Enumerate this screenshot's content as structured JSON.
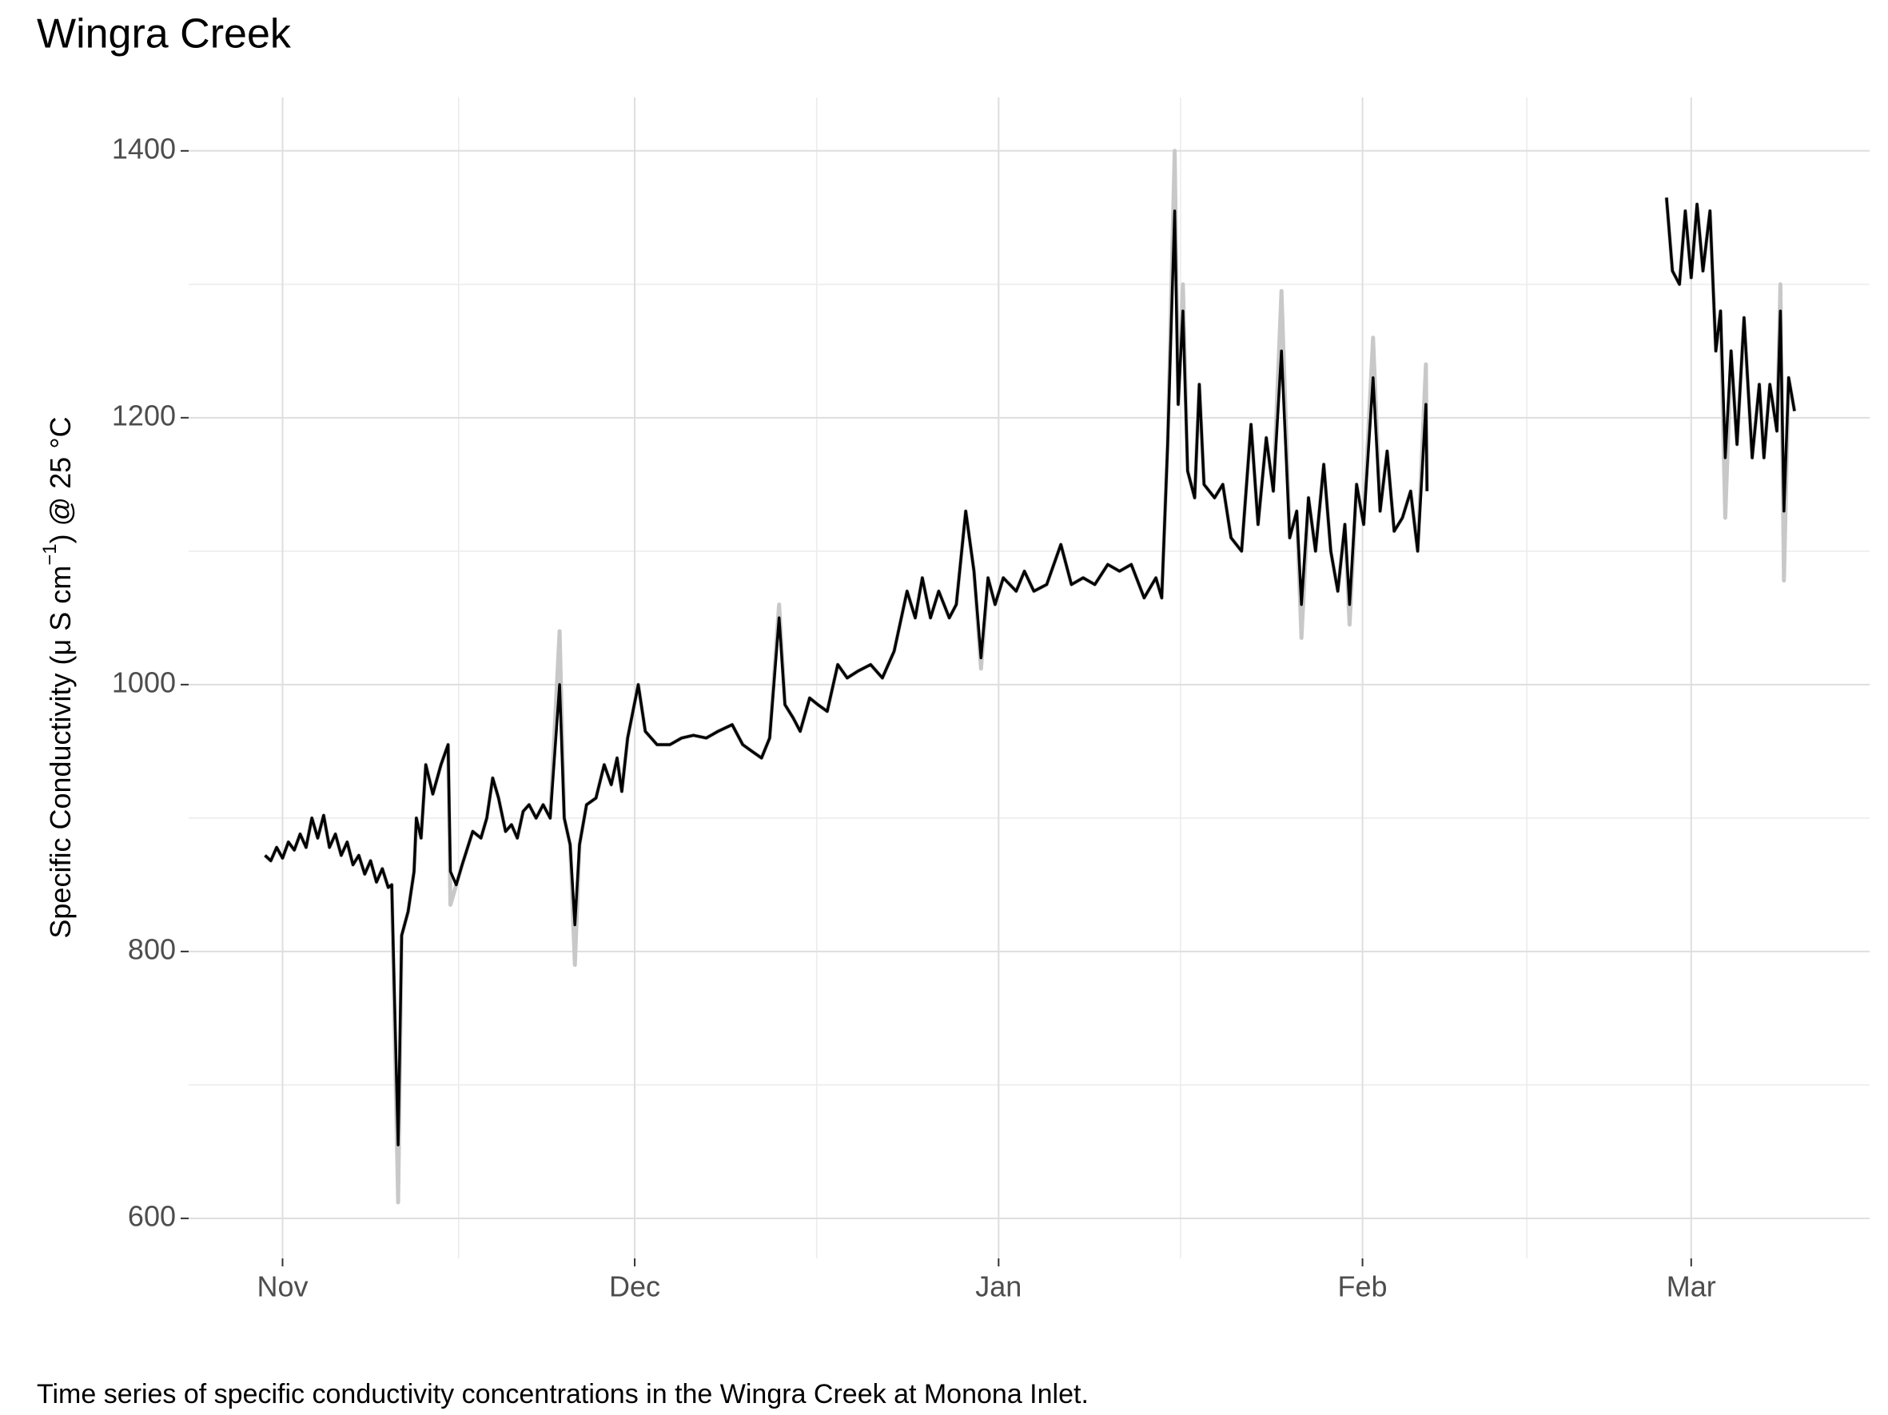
{
  "chart_data": {
    "type": "line",
    "title": "Wingra Creek",
    "y_label": [
      "Specific Conductivity  (μ S cm",
      "−1",
      ") @ 25 °C"
    ],
    "caption": "Time series of specific conductivity concentrations in the Wingra Creek at Monona Inlet.",
    "x": [
      -1.5,
      -1,
      -0.5,
      0,
      0.5,
      1,
      1.5,
      2,
      2.5,
      3,
      3.5,
      4,
      4.5,
      5,
      5.5,
      6,
      6.5,
      7,
      7.5,
      8,
      8.5,
      9,
      9.3,
      9.85,
      10.15,
      10.7,
      11.2,
      11.4,
      11.8,
      12.2,
      12.8,
      13.5,
      14.1,
      14.3,
      14.8,
      15.3,
      16.2,
      16.9,
      17.4,
      17.9,
      18.4,
      19,
      19.5,
      20,
      20.5,
      21,
      21.6,
      22.2,
      22.8,
      23.6,
      24,
      24.5,
      24.9,
      25.3,
      25.9,
      26.7,
      27.4,
      28,
      28.5,
      28.9,
      29.4,
      30.3,
      30.9,
      31.9,
      33,
      34,
      35,
      36.1,
      37.1,
      38.3,
      39.2,
      40,
      40.8,
      41.5,
      42.3,
      42.8,
      43.5,
      44.1,
      44.9,
      45.6,
      46.4,
      47.3,
      48.1,
      49,
      50.1,
      51.1,
      52.1,
      53.2,
      53.9,
      54.5,
      55.2,
      55.9,
      56.8,
      57.4,
      58.2,
      58.9,
      59.5,
      60.1,
      60.7,
      61.4,
      62.5,
      63.2,
      64,
      65.1,
      66.3,
      67.2,
      68.2,
      69.2,
      70.3,
      71.3,
      72.3,
      73.4,
      74.4,
      74.9,
      75.4,
      76,
      76.3,
      76.7,
      77.1,
      77.7,
      78.1,
      78.5,
      79.4,
      80.1,
      80.8,
      81.7,
      82.5,
      83.1,
      83.8,
      84.4,
      85.1,
      85.8,
      86.4,
      86.8,
      87.4,
      88,
      88.7,
      89.3,
      89.9,
      90.5,
      90.9,
      91.5,
      92.1,
      92.9,
      93.5,
      94.1,
      94.7,
      95.4,
      96.1,
      96.7,
      97.4,
      97.5,
      107,
      117.9,
      118.4,
      119,
      119.5,
      120,
      120.5,
      121,
      121.6,
      122.1,
      122.5,
      122.9,
      123.4,
      123.9,
      124.5,
      125.2,
      125.8,
      126.2,
      126.7,
      127.3,
      127.6,
      127.9,
      128.3,
      128.8
    ],
    "series": [
      {
        "color": "#c8c8c8",
        "width": 5,
        "values": [
          872,
          868,
          878,
          870,
          882,
          876,
          888,
          878,
          900,
          885,
          902,
          878,
          888,
          872,
          882,
          865,
          872,
          858,
          868,
          852,
          862,
          848,
          850,
          612,
          812,
          830,
          860,
          900,
          885,
          940,
          918,
          940,
          955,
          835,
          850,
          865,
          890,
          885,
          900,
          930,
          915,
          890,
          895,
          885,
          905,
          910,
          900,
          910,
          900,
          1040,
          900,
          880,
          790,
          880,
          910,
          915,
          940,
          925,
          945,
          920,
          960,
          1000,
          965,
          955,
          955,
          960,
          962,
          960,
          965,
          970,
          955,
          950,
          945,
          960,
          1060,
          985,
          975,
          965,
          990,
          985,
          980,
          1015,
          1005,
          1010,
          1015,
          1005,
          1025,
          1070,
          1050,
          1080,
          1050,
          1070,
          1050,
          1060,
          1130,
          1085,
          1012,
          1080,
          1060,
          1080,
          1070,
          1085,
          1070,
          1075,
          1105,
          1075,
          1080,
          1075,
          1090,
          1085,
          1090,
          1065,
          1080,
          1065,
          1180,
          1400,
          1210,
          1300,
          1160,
          1140,
          1225,
          1150,
          1140,
          1150,
          1110,
          1100,
          1195,
          1120,
          1185,
          1145,
          1295,
          1110,
          1130,
          1035,
          1140,
          1100,
          1165,
          1100,
          1070,
          1120,
          1045,
          1150,
          1120,
          1260,
          1130,
          1175,
          1115,
          1125,
          1145,
          1100,
          1240,
          1145,
          null,
          1365,
          1310,
          1300,
          1355,
          1305,
          1360,
          1310,
          1355,
          1250,
          1280,
          1125,
          1250,
          1180,
          1275,
          1170,
          1225,
          1170,
          1225,
          1190,
          1300,
          1078,
          1230,
          1205
        ]
      },
      {
        "color": "#000000",
        "width": 3.5,
        "values": [
          872,
          868,
          878,
          870,
          882,
          876,
          888,
          878,
          900,
          885,
          902,
          878,
          888,
          872,
          882,
          865,
          872,
          858,
          868,
          852,
          862,
          848,
          850,
          655,
          812,
          830,
          860,
          900,
          885,
          940,
          918,
          940,
          955,
          860,
          850,
          865,
          890,
          885,
          900,
          930,
          915,
          890,
          895,
          885,
          905,
          910,
          900,
          910,
          900,
          1000,
          900,
          880,
          820,
          880,
          910,
          915,
          940,
          925,
          945,
          920,
          960,
          1000,
          965,
          955,
          955,
          960,
          962,
          960,
          965,
          970,
          955,
          950,
          945,
          960,
          1050,
          985,
          975,
          965,
          990,
          985,
          980,
          1015,
          1005,
          1010,
          1015,
          1005,
          1025,
          1070,
          1050,
          1080,
          1050,
          1070,
          1050,
          1060,
          1130,
          1085,
          1020,
          1080,
          1060,
          1080,
          1070,
          1085,
          1070,
          1075,
          1105,
          1075,
          1080,
          1075,
          1090,
          1085,
          1090,
          1065,
          1080,
          1065,
          1180,
          1355,
          1210,
          1280,
          1160,
          1140,
          1225,
          1150,
          1140,
          1150,
          1110,
          1100,
          1195,
          1120,
          1185,
          1145,
          1250,
          1110,
          1130,
          1060,
          1140,
          1100,
          1165,
          1100,
          1070,
          1120,
          1060,
          1150,
          1120,
          1230,
          1130,
          1175,
          1115,
          1125,
          1145,
          1100,
          1210,
          1145,
          null,
          1365,
          1310,
          1300,
          1355,
          1305,
          1360,
          1310,
          1355,
          1250,
          1280,
          1170,
          1250,
          1180,
          1275,
          1170,
          1225,
          1170,
          1225,
          1190,
          1280,
          1130,
          1230,
          1205
        ]
      }
    ],
    "xlim": [
      -8,
      135.2
    ],
    "xticks": [
      {
        "value": 0,
        "label": "Nov"
      },
      {
        "value": 30,
        "label": "Dec"
      },
      {
        "value": 61,
        "label": "Jan"
      },
      {
        "value": 92,
        "label": "Feb"
      },
      {
        "value": 120,
        "label": "Mar"
      }
    ],
    "ylim": [
      570,
      1440
    ],
    "yticks": [
      600,
      800,
      1000,
      1200,
      1400
    ],
    "grid": true
  }
}
